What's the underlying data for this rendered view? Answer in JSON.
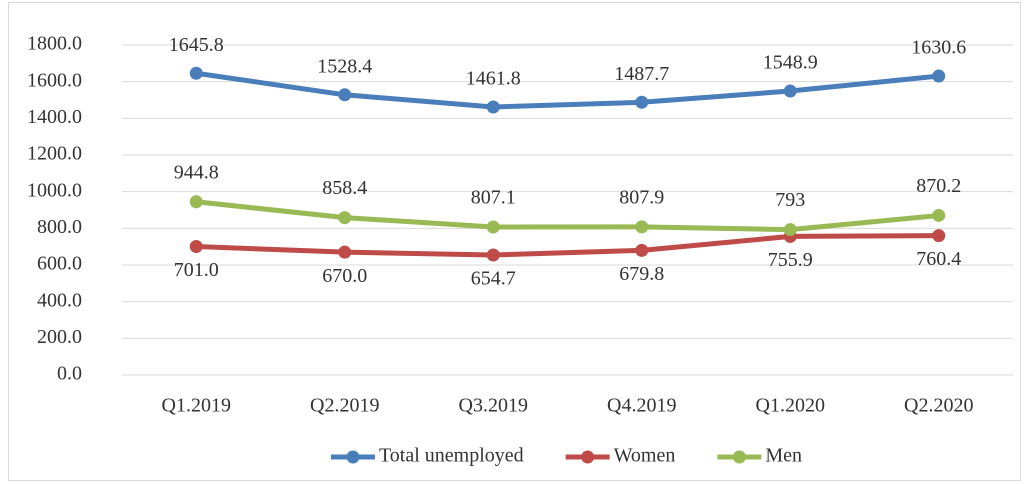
{
  "chart_data": {
    "type": "line",
    "categories": [
      "Q1.2019",
      "Q2.2019",
      "Q3.2019",
      "Q4.2019",
      "Q1.2020",
      "Q2.2020"
    ],
    "series": [
      {
        "name": "Total unemployed",
        "color": "#4a7ebb",
        "values": [
          1645.8,
          1528.4,
          1461.8,
          1487.7,
          1548.9,
          1630.6
        ]
      },
      {
        "name": "Women",
        "color": "#be4b48",
        "values": [
          701,
          670,
          654.7,
          679.8,
          755.9,
          760.4
        ],
        "value_labels": [
          "701.0",
          "670.0",
          "654.7",
          "679.8",
          "755.9",
          "760.4"
        ]
      },
      {
        "name": "Men",
        "color": "#98b954",
        "values": [
          944.8,
          858.4,
          807.1,
          807.9,
          793,
          870.2
        ]
      }
    ],
    "ylim": [
      0,
      1800
    ],
    "yticks": [
      {
        "value": 0,
        "label": "0.0"
      },
      {
        "value": 200,
        "label": "200.0"
      },
      {
        "value": 400,
        "label": "400.0"
      },
      {
        "value": 600,
        "label": "600.0"
      },
      {
        "value": 800,
        "label": "800.0"
      },
      {
        "value": 1000,
        "label": "1000.0"
      },
      {
        "value": 1200,
        "label": "1200.0"
      },
      {
        "value": 1400,
        "label": "1400.0"
      },
      {
        "value": 1600,
        "label": "1600.0"
      },
      {
        "value": 1800,
        "label": "1800.0"
      }
    ],
    "grid": true,
    "legend": "bottom"
  }
}
